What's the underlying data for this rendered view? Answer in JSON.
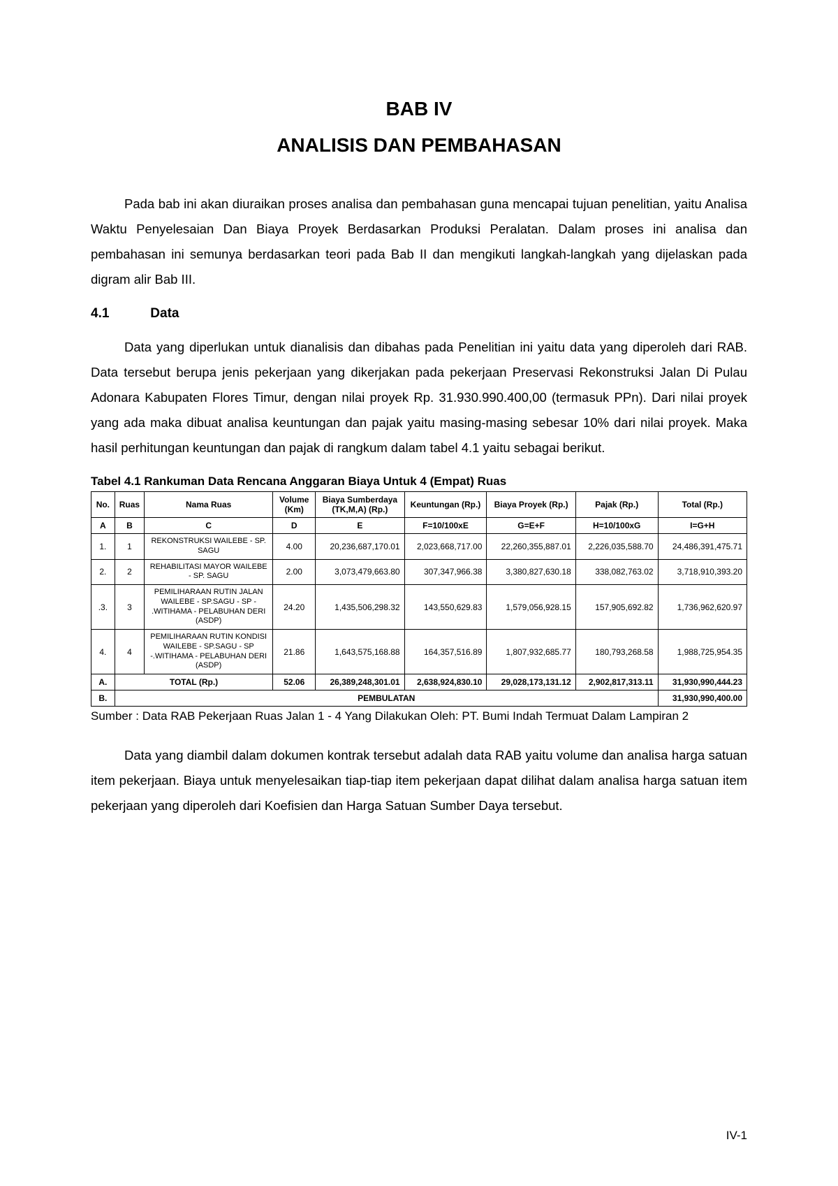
{
  "chapter": {
    "num": "BAB IV",
    "title": "ANALISIS DAN PEMBAHASAN"
  },
  "para1": "Pada bab ini akan diuraikan proses analisa dan pembahasan guna mencapai tujuan penelitian, yaitu Analisa Waktu Penyelesaian Dan Biaya Proyek Berdasarkan Produksi Peralatan. Dalam proses ini analisa dan pembahasan ini semunya berdasarkan teori pada Bab II dan mengikuti langkah-langkah yang dijelaskan pada digram alir Bab III.",
  "section": {
    "num": "4.1",
    "title": "Data"
  },
  "para2": "Data yang diperlukan untuk dianalisis dan dibahas pada Penelitian ini yaitu data yang diperoleh dari RAB. Data tersebut berupa jenis pekerjaan yang dikerjakan pada pekerjaan Preservasi Rekonstruksi Jalan Di Pulau Adonara Kabupaten Flores Timur, dengan nilai proyek Rp. 31.930.990.400,00 (termasuk PPn). Dari nilai proyek yang ada maka dibuat analisa keuntungan dan pajak yaitu masing-masing sebesar 10% dari nilai proyek. Maka hasil perhitungan keuntungan dan pajak di rangkum dalam tabel 4.1 yaitu sebagai berikut.",
  "table": {
    "caption": "Tabel 4.1 Rankuman Data Rencana Anggaran Biaya Untuk  4 (Empat) Ruas",
    "headers": {
      "no": "No.",
      "ruas": "Ruas",
      "nama": "Nama Ruas",
      "volume": "Volume (Km)",
      "biaya_sd": "Biaya Sumberdaya (TK,M,A) (Rp.)",
      "keuntungan": "Keuntungan (Rp.)",
      "biaya_proyek": "Biaya Proyek (Rp.)",
      "pajak": "Pajak (Rp.)",
      "total": "Total (Rp.)"
    },
    "formula": {
      "A": "A",
      "B": "B",
      "C": "C",
      "D": "D",
      "E": "E",
      "F": "F=10/100xE",
      "G": "G=E+F",
      "H": "H=10/100xG",
      "I": "I=G+H"
    },
    "rows": [
      {
        "no": "1.",
        "ruas": "1",
        "nama": "REKONSTRUKSI WAILEBE - SP. SAGU",
        "vol": "4.00",
        "e": "20,236,687,170.01",
        "f": "2,023,668,717.00",
        "g": "22,260,355,887.01",
        "h": "2,226,035,588.70",
        "i": "24,486,391,475.71"
      },
      {
        "no": "2.",
        "ruas": "2",
        "nama": "REHABILITASI MAYOR WAILEBE - SP. SAGU",
        "vol": "2.00",
        "e": "3,073,479,663.80",
        "f": "307,347,966.38",
        "g": "3,380,827,630.18",
        "h": "338,082,763.02",
        "i": "3,718,910,393.20"
      },
      {
        "no": ".3.",
        "ruas": "3",
        "nama": "PEMILIHARAAN RUTIN JALAN WAILEBE - SP.SAGU - SP - .WITIHAMA - PELABUHAN DERI (ASDP)",
        "vol": "24.20",
        "e": "1,435,506,298.32",
        "f": "143,550,629.83",
        "g": "1,579,056,928.15",
        "h": "157,905,692.82",
        "i": "1,736,962,620.97"
      },
      {
        "no": "4.",
        "ruas": "4",
        "nama": "PEMILIHARAAN RUTIN KONDISI WAILEBE - SP.SAGU - SP -.WITIHAMA - PELABUHAN DERI (ASDP)",
        "vol": "21.86",
        "e": "1,643,575,168.88",
        "f": "164,357,516.89",
        "g": "1,807,932,685.77",
        "h": "180,793,268.58",
        "i": "1,988,725,954.35"
      }
    ],
    "total": {
      "label_a": "A.",
      "label": "TOTAL (Rp.)",
      "vol": "52.06",
      "e": "26,389,248,301.01",
      "f": "2,638,924,830.10",
      "g": "29,028,173,131.12",
      "h": "2,902,817,313.11",
      "i": "31,930,990,444.23"
    },
    "pembulatan": {
      "label_b": "B.",
      "label": "PEMBULATAN",
      "value": "31,930,990,400.00"
    }
  },
  "source": "Sumber : Data RAB Pekerjaan Ruas Jalan 1 - 4 Yang Dilakukan Oleh: PT. Bumi Indah Termuat Dalam Lampiran 2",
  "para3": "Data yang diambil dalam dokumen kontrak tersebut adalah data RAB yaitu volume dan analisa harga satuan item pekerjaan. Biaya untuk menyelesaikan tiap-tiap item pekerjaan dapat dilihat dalam analisa harga satuan item pekerjaan yang diperoleh dari Koefisien dan Harga Satuan Sumber Daya tersebut.",
  "page_number": "IV-1"
}
